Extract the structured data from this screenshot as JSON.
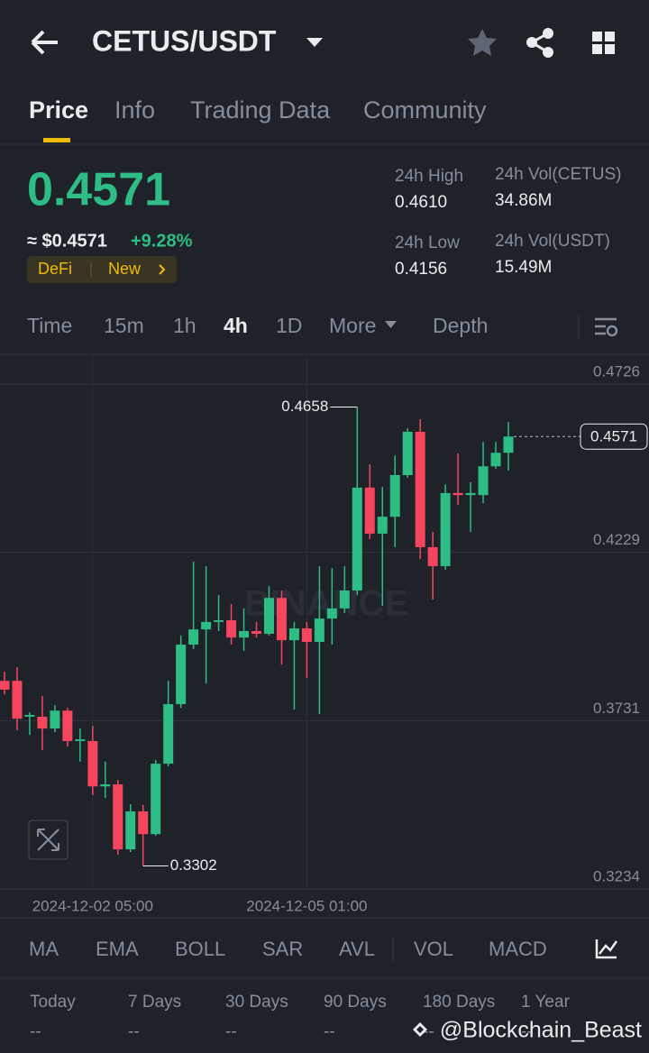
{
  "header": {
    "pair": "CETUS/USDT"
  },
  "tabs": [
    "Price",
    "Info",
    "Trading Data",
    "Community"
  ],
  "price": {
    "last": "0.4571",
    "fiat": "≈ $0.4571",
    "change": "+9.28%",
    "tags": [
      "DeFi",
      "New"
    ]
  },
  "stats": [
    {
      "label": "24h High",
      "value": "0.4610"
    },
    {
      "label": "24h Vol(CETUS)",
      "value": "34.86M"
    },
    {
      "label": "24h Low",
      "value": "0.4156"
    },
    {
      "label": "24h Vol(USDT)",
      "value": "15.49M"
    }
  ],
  "intervals": [
    "Time",
    "15m",
    "1h",
    "4h",
    "1D",
    "More",
    "Depth"
  ],
  "chart_data": {
    "type": "candlestick",
    "watermark": "BINANCE",
    "categories": [
      null,
      null,
      null,
      null,
      null,
      null,
      null,
      "2024-12-02 05:00",
      null,
      null,
      null,
      null,
      null,
      null,
      null,
      null,
      null,
      null,
      null,
      null,
      null,
      null,
      null,
      null,
      "2024-12-05 01:00",
      null,
      null,
      null,
      null,
      null,
      null,
      null,
      null,
      null,
      null,
      null,
      null,
      null,
      null,
      null,
      null
    ],
    "open": [
      0.3849,
      0.3849,
      0.3743,
      0.3743,
      0.3708,
      0.3761,
      0.3671,
      0.3671,
      0.3537,
      0.3543,
      0.3351,
      0.3463,
      0.3396,
      0.3604,
      0.378,
      0.3956,
      0.4001,
      0.4023,
      0.4028,
      0.3977,
      0.3996,
      0.3988,
      0.4094,
      0.3969,
      0.4004,
      0.3964,
      0.4033,
      0.4063,
      0.4116,
      0.442,
      0.4284,
      0.4334,
      0.4457,
      0.4585,
      0.4244,
      0.4188,
      0.4404,
      0.4398,
      0.4398,
      0.4483,
      0.4523
    ],
    "high": [
      0.3876,
      0.3889,
      0.3756,
      0.3804,
      0.3777,
      0.3769,
      0.3708,
      0.3716,
      0.361,
      0.3556,
      0.3484,
      0.3482,
      0.3615,
      0.3849,
      0.3983,
      0.4201,
      0.4188,
      0.4102,
      0.4076,
      0.4063,
      0.4023,
      0.4129,
      0.4116,
      0.4023,
      0.4023,
      0.4188,
      0.4182,
      0.4188,
      0.4658,
      0.4489,
      0.4422,
      0.4515,
      0.4595,
      0.4622,
      0.4289,
      0.443,
      0.4521,
      0.4436,
      0.4555,
      0.4555,
      0.4614
    ],
    "low": [
      0.3809,
      0.3703,
      0.3689,
      0.3644,
      0.3697,
      0.3655,
      0.361,
      0.3511,
      0.3503,
      0.3335,
      0.3343,
      0.3302,
      0.3391,
      0.3596,
      0.3769,
      0.3943,
      0.3841,
      0.3996,
      0.3956,
      0.3937,
      0.3977,
      0.3983,
      0.3897,
      0.3764,
      0.3857,
      0.3751,
      0.3956,
      0.4049,
      0.4102,
      0.4268,
      0.4071,
      0.4244,
      0.4449,
      0.4209,
      0.4089,
      0.4177,
      0.4369,
      0.4289,
      0.4374,
      0.4476,
      0.447
    ],
    "close": [
      0.3823,
      0.3737,
      0.3748,
      0.3708,
      0.3761,
      0.3671,
      0.3676,
      0.3537,
      0.3543,
      0.3351,
      0.3463,
      0.3396,
      0.3604,
      0.378,
      0.3956,
      0.4001,
      0.4023,
      0.4028,
      0.3977,
      0.3996,
      0.3988,
      0.4094,
      0.3969,
      0.4004,
      0.3964,
      0.4033,
      0.4063,
      0.4116,
      0.442,
      0.4284,
      0.4334,
      0.4457,
      0.4585,
      0.4244,
      0.4188,
      0.4404,
      0.4398,
      0.4404,
      0.4483,
      0.4523,
      0.4571
    ],
    "up_color": "#2ebd85",
    "down_color": "#f6465d",
    "ylim": [
      0.3234,
      0.4814
    ],
    "yticks": [
      0.3234,
      0.3731,
      0.4229,
      0.4726
    ],
    "grid": true
  },
  "indicators": [
    "MA",
    "EMA",
    "BOLL",
    "SAR",
    "AVL",
    "VOL",
    "MACD"
  ],
  "periods": [
    {
      "label": "Today",
      "value": "--"
    },
    {
      "label": "7 Days",
      "value": "--"
    },
    {
      "label": "30 Days",
      "value": "--"
    },
    {
      "label": "90 Days",
      "value": "--"
    },
    {
      "label": "180 Days",
      "value": "--"
    },
    {
      "label": "1 Year",
      "value": "--"
    }
  ],
  "watermark": "@Blockchain_Beast"
}
